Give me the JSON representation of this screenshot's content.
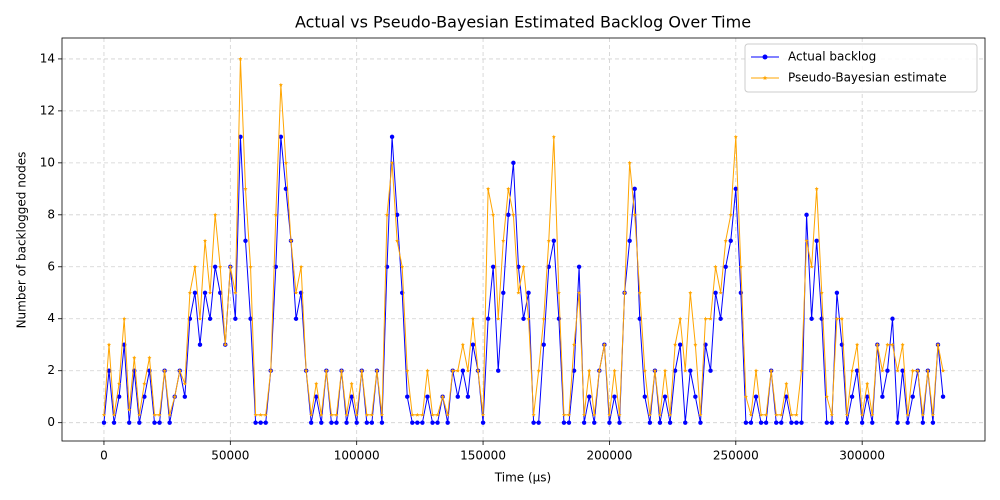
{
  "chart_data": {
    "type": "line",
    "title": "Actual vs Pseudo-Bayesian Estimated Backlog Over Time",
    "xlabel": "Time (µs)",
    "ylabel": "Number of backlogged nodes",
    "x": [
      0,
      2000,
      4000,
      6000,
      8000,
      10000,
      12000,
      14000,
      16000,
      18000,
      20000,
      22000,
      24000,
      26000,
      28000,
      30000,
      32000,
      34000,
      36000,
      38000,
      40000,
      42000,
      44000,
      46000,
      48000,
      50000,
      52000,
      54000,
      56000,
      58000,
      60000,
      62000,
      64000,
      66000,
      68000,
      70000,
      72000,
      74000,
      76000,
      78000,
      80000,
      82000,
      84000,
      86000,
      88000,
      90000,
      92000,
      94000,
      96000,
      98000,
      100000,
      102000,
      104000,
      106000,
      108000,
      110000,
      112000,
      114000,
      116000,
      118000,
      120000,
      122000,
      124000,
      126000,
      128000,
      130000,
      132000,
      134000,
      136000,
      138000,
      140000,
      142000,
      144000,
      146000,
      148000,
      150000,
      152000,
      154000,
      156000,
      158000,
      160000,
      162000,
      164000,
      166000,
      168000,
      170000,
      172000,
      174000,
      176000,
      178000,
      180000,
      182000,
      184000,
      186000,
      188000,
      190000,
      192000,
      194000,
      196000,
      198000,
      200000,
      202000,
      204000,
      206000,
      208000,
      210000,
      212000,
      214000,
      216000,
      218000,
      220000,
      222000,
      224000,
      226000,
      228000,
      230000,
      232000,
      234000,
      236000,
      238000,
      240000,
      242000,
      244000,
      246000,
      248000,
      250000,
      252000,
      254000,
      256000,
      258000,
      260000,
      262000,
      264000,
      266000,
      268000,
      270000,
      272000,
      274000,
      276000,
      278000,
      280000,
      282000,
      284000,
      286000,
      288000,
      290000,
      292000,
      294000,
      296000,
      298000,
      300000,
      302000,
      304000,
      306000,
      308000,
      310000,
      312000,
      314000,
      316000,
      318000,
      320000,
      322000,
      324000,
      326000,
      328000,
      330000,
      332000
    ],
    "series": [
      {
        "name": "Actual backlog",
        "color": "#0000ff",
        "marker": "circle",
        "values": [
          0,
          2,
          0,
          1,
          3,
          0,
          2,
          0,
          1,
          2,
          0,
          0,
          2,
          0,
          1,
          2,
          1,
          4,
          5,
          3,
          5,
          4,
          6,
          5,
          3,
          6,
          4,
          11,
          7,
          4,
          0,
          0,
          0,
          2,
          6,
          11,
          9,
          7,
          4,
          5,
          2,
          0,
          1,
          0,
          2,
          0,
          0,
          2,
          0,
          1,
          0,
          2,
          0,
          0,
          2,
          0,
          6,
          11,
          8,
          5,
          1,
          0,
          0,
          0,
          1,
          0,
          0,
          1,
          0,
          2,
          1,
          2,
          1,
          3,
          2,
          0,
          4,
          6,
          2,
          5,
          8,
          10,
          6,
          4,
          5,
          0,
          0,
          3,
          6,
          7,
          4,
          0,
          0,
          2,
          6,
          0,
          1,
          0,
          2,
          3,
          0,
          1,
          0,
          5,
          7,
          9,
          4,
          1,
          0,
          2,
          0,
          1,
          0,
          2,
          3,
          0,
          2,
          1,
          0,
          3,
          2,
          5,
          4,
          6,
          7,
          9,
          5,
          0,
          0,
          1,
          0,
          0,
          2,
          0,
          0,
          1,
          0,
          0,
          0,
          8,
          4,
          7,
          4,
          0,
          0,
          5,
          3,
          0,
          1,
          2,
          0,
          1,
          0,
          3,
          1,
          2,
          4,
          0,
          2,
          0,
          1,
          2,
          0,
          2,
          0,
          3,
          1
        ]
      },
      {
        "name": "Pseudo-Bayesian estimate",
        "color": "#ffa500",
        "marker": "star",
        "values": [
          0.3,
          3,
          0.3,
          1.5,
          4,
          0.5,
          2.5,
          0.3,
          1.5,
          2.5,
          0.3,
          0.3,
          2,
          0.3,
          1,
          2,
          1.5,
          5,
          6,
          4,
          7,
          5,
          8,
          6,
          3,
          6,
          5,
          14,
          9,
          6,
          0.3,
          0.3,
          0.3,
          2,
          8,
          13,
          10,
          7,
          5,
          6,
          2,
          0.3,
          1.5,
          0.3,
          2,
          0.3,
          0.3,
          2,
          0.3,
          1.5,
          0.3,
          2,
          0.3,
          0.3,
          2,
          0.3,
          8,
          10,
          7,
          6,
          2,
          0.3,
          0.3,
          0.3,
          2,
          0.3,
          0.3,
          1,
          0.3,
          2,
          2,
          3,
          2,
          4,
          2,
          0.3,
          9,
          8,
          4,
          7,
          9,
          8,
          5,
          6,
          4,
          0.3,
          2,
          4,
          7,
          11,
          5,
          0.3,
          0.3,
          3,
          5,
          0.3,
          2,
          0.3,
          2,
          3,
          0.3,
          2,
          0.3,
          5,
          10,
          8,
          5,
          2,
          0.3,
          2,
          0.3,
          2,
          0.3,
          3,
          4,
          2,
          5,
          3,
          0.3,
          4,
          4,
          6,
          5,
          7,
          8,
          11,
          6,
          1,
          0.3,
          2,
          0.3,
          0.3,
          2,
          0.3,
          0.3,
          1.5,
          0.3,
          0.3,
          2,
          7,
          6,
          9,
          5,
          1,
          0.3,
          4,
          4,
          0.3,
          2,
          3,
          0.3,
          1.5,
          0.3,
          3,
          2,
          3,
          3,
          2,
          3,
          0.3,
          2,
          2,
          0.3,
          2,
          0.3,
          3,
          2
        ]
      }
    ],
    "xlim": [
      -16600,
      348600
    ],
    "ylim": [
      -0.705,
      14.805
    ],
    "xticks": [
      0,
      50000,
      100000,
      150000,
      200000,
      250000,
      300000
    ],
    "yticks": [
      0,
      2,
      4,
      6,
      8,
      10,
      12,
      14
    ],
    "grid": true,
    "legend": "upper right"
  }
}
